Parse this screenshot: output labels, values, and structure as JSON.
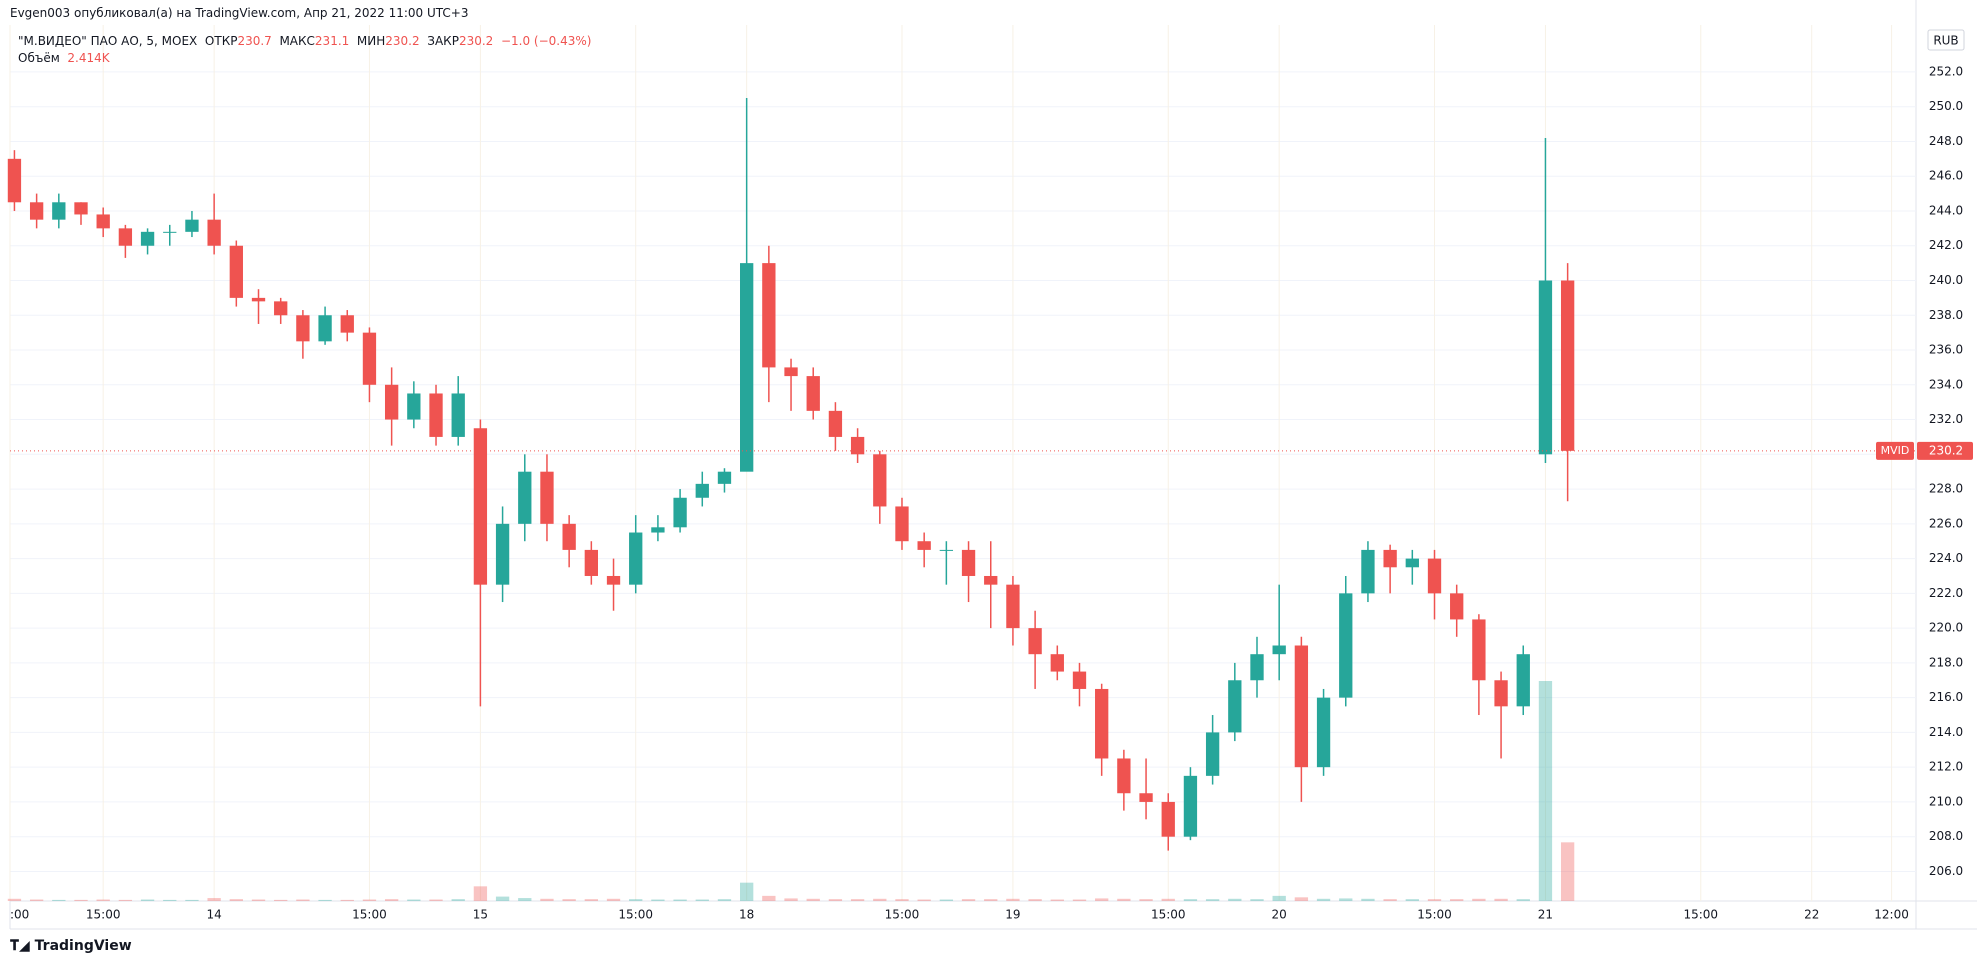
{
  "header": {
    "published": "Evgen003 опубликовал(а) на TradingView.com, Апр 21, 2022 11:00 UTC+3"
  },
  "legend": {
    "symbol": "\"М.ВИДЕО\" ПАО АО, 5, MOEX",
    "open_label": "ОТКР",
    "open": "230.7",
    "high_label": "МАКС",
    "high": "231.1",
    "low_label": "МИН",
    "low": "230.2",
    "close_label": "ЗАКР",
    "close": "230.2",
    "change": "−1.0 (−0.43%)",
    "volume_label": "Объём",
    "volume": "2.414K"
  },
  "footer": {
    "brand": "TradingView"
  },
  "chart_data": {
    "type": "candlestick",
    "currency": "RUB",
    "symbol_tag": "MVID",
    "last_price": 230.2,
    "up_color": "#26a69a",
    "down_color": "#ef5350",
    "grid": true,
    "xlim": [
      -0.2,
      85.7
    ],
    "ylim": [
      204.3,
      254.7
    ],
    "xticks": [
      {
        "value": -0.2,
        "label": ":00"
      },
      {
        "value": 4,
        "label": "15:00"
      },
      {
        "value": 9,
        "label": "14"
      },
      {
        "value": 16,
        "label": "15:00"
      },
      {
        "value": 21,
        "label": "15"
      },
      {
        "value": 28,
        "label": "15:00"
      },
      {
        "value": 33,
        "label": "18"
      },
      {
        "value": 40,
        "label": "15:00"
      },
      {
        "value": 45,
        "label": "19"
      },
      {
        "value": 52,
        "label": "15:00"
      },
      {
        "value": 57,
        "label": "20"
      },
      {
        "value": 64,
        "label": "15:00"
      },
      {
        "value": 69,
        "label": "21"
      },
      {
        "value": 76,
        "label": "15:00"
      },
      {
        "value": 81,
        "label": "22"
      },
      {
        "value": 84.6,
        "label": "12:00"
      }
    ],
    "yticks": [
      {
        "value": 206,
        "label": "206.0"
      },
      {
        "value": 208,
        "label": "208.0"
      },
      {
        "value": 210,
        "label": "210.0"
      },
      {
        "value": 212,
        "label": "212.0"
      },
      {
        "value": 214,
        "label": "214.0"
      },
      {
        "value": 216,
        "label": "216.0"
      },
      {
        "value": 218,
        "label": "218.0"
      },
      {
        "value": 220,
        "label": "220.0"
      },
      {
        "value": 222,
        "label": "222.0"
      },
      {
        "value": 224,
        "label": "224.0"
      },
      {
        "value": 226,
        "label": "226.0"
      },
      {
        "value": 228,
        "label": "228.0"
      },
      {
        "value": 230,
        "label": "230.0"
      },
      {
        "value": 232,
        "label": "232.0"
      },
      {
        "value": 234,
        "label": "234.0"
      },
      {
        "value": 236,
        "label": "236.0"
      },
      {
        "value": 238,
        "label": "238.0"
      },
      {
        "value": 240,
        "label": "240.0"
      },
      {
        "value": 242,
        "label": "242.0"
      },
      {
        "value": 244,
        "label": "244.0"
      },
      {
        "value": 246,
        "label": "246.0"
      },
      {
        "value": 248,
        "label": "248.0"
      },
      {
        "value": 250,
        "label": "250.0"
      },
      {
        "value": 252,
        "label": "252.0"
      }
    ],
    "open": [
      247,
      244.5,
      243.5,
      244.5,
      243.8,
      243,
      242,
      242.8,
      242.8,
      243.5,
      242,
      239,
      238.8,
      238,
      236.5,
      238,
      237,
      234,
      232,
      233.5,
      231,
      231.5,
      222.5,
      226,
      229,
      226,
      224.5,
      223,
      222.5,
      225.5,
      225.8,
      227.5,
      228.3,
      229,
      241,
      235,
      234.5,
      232.5,
      231,
      230,
      227,
      225,
      224.5,
      224.5,
      223,
      222.5,
      220,
      218.5,
      217.5,
      216.5,
      212.5,
      210.5,
      210,
      208,
      211.5,
      214,
      217,
      218.5,
      219,
      212,
      216,
      222,
      224.5,
      223.5,
      224,
      222,
      220.5,
      217,
      215.5,
      230,
      240
    ],
    "high": [
      247.5,
      245,
      245,
      244.5,
      244.2,
      243.2,
      243,
      243.2,
      244,
      245,
      242.3,
      239.5,
      239,
      238.3,
      238.5,
      238.3,
      237.3,
      235,
      234.2,
      234,
      234.5,
      232,
      227,
      230,
      230,
      226.5,
      225,
      224,
      226.5,
      226.5,
      228,
      229,
      229.2,
      250.5,
      242,
      235.5,
      235,
      233,
      231.5,
      230.2,
      227.5,
      225.5,
      225,
      225,
      225,
      223,
      221,
      219,
      218,
      216.8,
      213,
      212.5,
      210.5,
      212,
      215,
      218,
      219.5,
      222.5,
      219.5,
      216.5,
      223,
      225,
      224.8,
      224.5,
      224.5,
      222.5,
      220.8,
      217.5,
      219,
      248.2,
      241
    ],
    "low": [
      244,
      243,
      243,
      243.2,
      242.5,
      241.3,
      241.5,
      242,
      242.5,
      241.5,
      238.5,
      237.5,
      237.5,
      235.5,
      236.3,
      236.5,
      233,
      230.5,
      231.5,
      230.5,
      230.5,
      215.5,
      221.5,
      225,
      225,
      223.5,
      222.5,
      221,
      222,
      225,
      225.5,
      227,
      227.8,
      229.5,
      233,
      232.5,
      232,
      230.2,
      229.5,
      226,
      224.5,
      223.5,
      222.5,
      221.5,
      220,
      219,
      216.5,
      217,
      215.5,
      211.5,
      209.5,
      209,
      207.2,
      207.8,
      211,
      213.5,
      216,
      217,
      210,
      211.5,
      215.5,
      221.5,
      222,
      222.5,
      220.5,
      219.5,
      215,
      212.5,
      215,
      229.5,
      227.3
    ],
    "close": [
      244.5,
      243.5,
      244.5,
      243.8,
      243,
      242,
      242.8,
      242.8,
      243.5,
      242,
      239,
      238.8,
      238,
      236.5,
      238,
      237,
      234,
      232,
      233.5,
      231,
      233.5,
      222.5,
      226,
      229,
      226,
      224.5,
      223,
      222.5,
      225.5,
      225.8,
      227.5,
      228.3,
      229,
      241,
      235,
      234.5,
      232.5,
      231,
      230,
      227,
      225,
      224.5,
      224.5,
      223,
      222.5,
      220,
      218.5,
      217.5,
      216.5,
      212.5,
      210.5,
      210,
      208,
      211.5,
      214,
      217,
      218.5,
      219,
      212,
      216,
      222,
      224.5,
      223.5,
      224,
      222,
      220.5,
      217,
      215.5,
      218.5,
      240,
      230.2
    ],
    "volume": [
      6,
      4,
      3,
      3,
      4,
      3,
      4,
      3,
      3,
      8,
      5,
      4,
      3,
      4,
      3,
      3,
      4,
      5,
      4,
      4,
      5,
      40,
      12,
      8,
      6,
      5,
      5,
      6,
      5,
      4,
      4,
      4,
      5,
      50,
      14,
      7,
      6,
      5,
      5,
      6,
      5,
      4,
      4,
      5,
      5,
      6,
      5,
      4,
      4,
      7,
      6,
      5,
      6,
      5,
      5,
      6,
      5,
      14,
      10,
      6,
      7,
      6,
      5,
      5,
      5,
      5,
      6,
      6,
      5,
      600,
      160
    ]
  }
}
